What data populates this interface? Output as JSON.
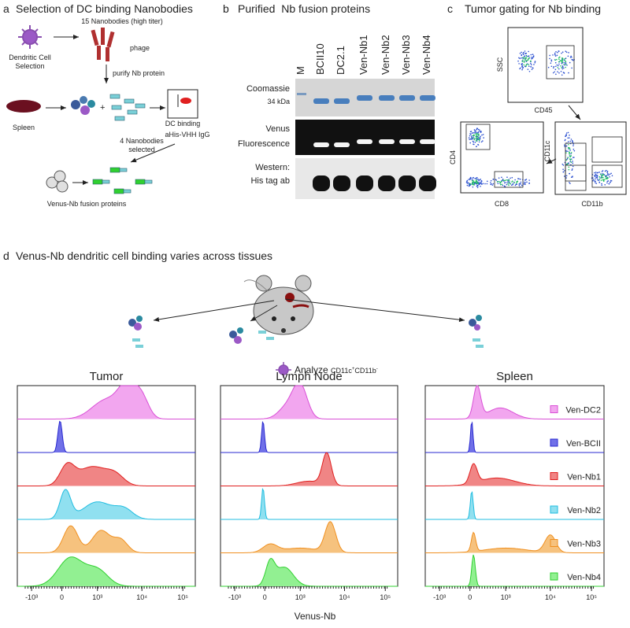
{
  "panel_a": {
    "letter": "a",
    "title": "Selection of DC binding Nanobodies",
    "labels": [
      "Dendritic Cell",
      "Selection",
      "15 Nanobodies (high titer)",
      "phage",
      "purify Nb protein",
      "Spleen",
      "DC binding",
      "aHis-VHH IgG",
      "4 Nanobodies",
      "selected",
      "Venus-Nb fusion proteins"
    ]
  },
  "panel_b": {
    "letter": "b",
    "title": "Purified  Nb fusion proteins",
    "lanes": [
      "M",
      "BCII10",
      "DC2.1",
      "Ven-Nb1",
      "Ven-Nb2",
      "Ven-Nb3",
      "Ven-Nb4"
    ],
    "rows": [
      "Coomassie",
      "34 kDa",
      "Venus",
      "Fluorescence",
      "Western:",
      "His tag ab"
    ]
  },
  "panel_c": {
    "letter": "c",
    "title": "Tumor gating for Nb binding",
    "axes": [
      "SSC",
      "CD45",
      "CD4",
      "CD8",
      "CD11c",
      "CD11b"
    ]
  },
  "panel_d": {
    "letter": "d",
    "title": "Venus-Nb dendritic cell binding varies across tissues",
    "analyze": "Analyze",
    "markers": [
      "CD11c",
      "+",
      "CD11b",
      "-"
    ],
    "tissues": [
      "Tumor",
      "Lymph Node",
      "Spleen"
    ],
    "legend": [
      {
        "name": "Ven-DC2",
        "color": "#d94fd6",
        "fill": "#f2a6ef"
      },
      {
        "name": "Ven-BCII",
        "color": "#2a2ad0",
        "fill": "#7070e8"
      },
      {
        "name": "Ven-Nb1",
        "color": "#e02020",
        "fill": "#f08585"
      },
      {
        "name": "Ven-Nb2",
        "color": "#20bde0",
        "fill": "#90e0f0"
      },
      {
        "name": "Ven-Nb3",
        "color": "#f09020",
        "fill": "#f6c27e"
      },
      {
        "name": "Ven-Nb4",
        "color": "#30d030",
        "fill": "#92f092"
      }
    ],
    "xticks": [
      "-10³",
      "0",
      "10³",
      "10⁴",
      "10⁵"
    ],
    "xlabel": "Venus-Nb"
  }
}
